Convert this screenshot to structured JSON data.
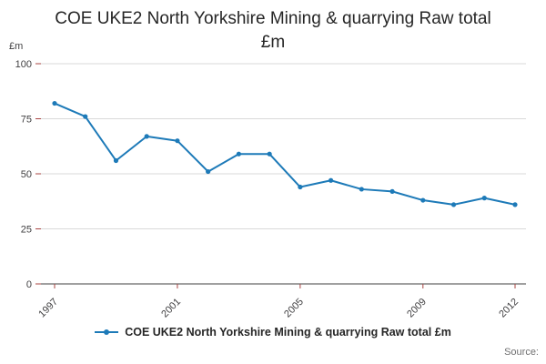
{
  "title_line1": "COE UKE2 North Yorkshire Mining & quarrying Raw total",
  "title_line2": "£m",
  "axis_unit": "£m",
  "source_label": "Source:",
  "legend": {
    "label": "COE UKE2 North Yorkshire Mining & quarrying Raw total £m"
  },
  "colors": {
    "line": "#1d7ab8",
    "grid": "#d9d9d9",
    "axis": "#404040",
    "tick": "#a94442",
    "tick_label": "#414042"
  },
  "chart_data": {
    "type": "line",
    "title": "COE UKE2 North Yorkshire Mining & quarrying Raw total £m",
    "xlabel": "",
    "ylabel": "£m",
    "x": [
      1997,
      1998,
      1999,
      2000,
      2001,
      2002,
      2003,
      2004,
      2005,
      2006,
      2007,
      2008,
      2009,
      2010,
      2011,
      2012
    ],
    "series": [
      {
        "name": "COE UKE2 North Yorkshire Mining & quarrying Raw total £m",
        "values": [
          82,
          76,
          56,
          67,
          65,
          51,
          59,
          59,
          44,
          47,
          43,
          42,
          38,
          36,
          39,
          36
        ]
      }
    ],
    "ylim": [
      0,
      100
    ],
    "yticks": [
      0,
      25,
      50,
      75,
      100
    ],
    "xticks": [
      1997,
      2001,
      2005,
      2009,
      2012
    ],
    "grid": true,
    "legend_position": "bottom"
  }
}
